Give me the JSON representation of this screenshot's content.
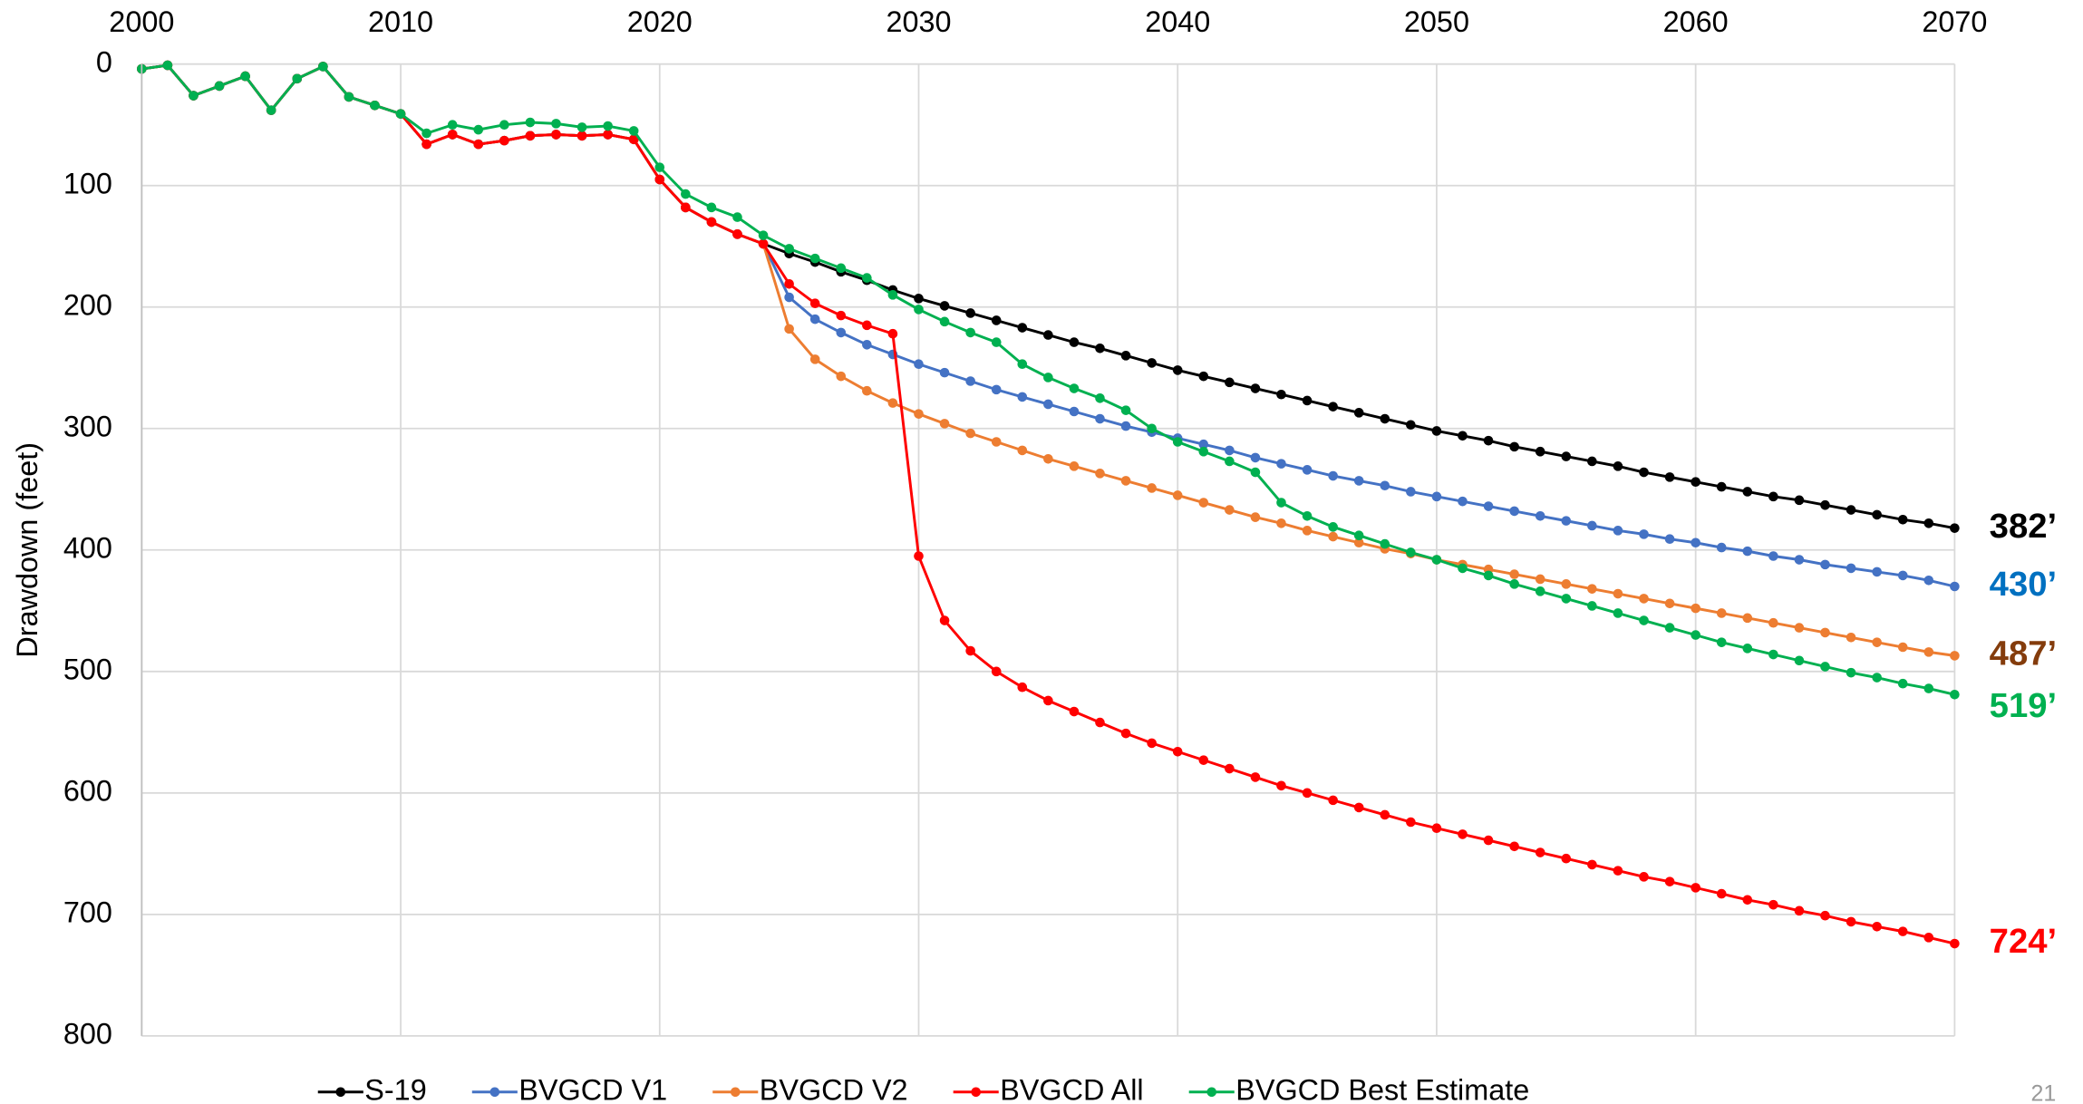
{
  "chart_data": {
    "type": "line",
    "y_label": "Drawdown  (feet)",
    "page_number": "21",
    "x": [
      2000,
      2001,
      2002,
      2003,
      2004,
      2005,
      2006,
      2007,
      2008,
      2009,
      2010,
      2011,
      2012,
      2013,
      2014,
      2015,
      2016,
      2017,
      2018,
      2019,
      2020,
      2021,
      2022,
      2023,
      2024,
      2025,
      2026,
      2027,
      2028,
      2029,
      2030,
      2031,
      2032,
      2033,
      2034,
      2035,
      2036,
      2037,
      2038,
      2039,
      2040,
      2041,
      2042,
      2043,
      2044,
      2045,
      2046,
      2047,
      2048,
      2049,
      2050,
      2051,
      2052,
      2053,
      2054,
      2055,
      2056,
      2057,
      2058,
      2059,
      2060,
      2061,
      2062,
      2063,
      2064,
      2065,
      2066,
      2067,
      2068,
      2069,
      2070
    ],
    "xlim": [
      2000,
      2070
    ],
    "xticks": [
      2000,
      2010,
      2020,
      2030,
      2040,
      2050,
      2060,
      2070
    ],
    "ylim": [
      0,
      800
    ],
    "yticks": [
      0,
      100,
      200,
      300,
      400,
      500,
      600,
      700,
      800
    ],
    "y_inverted": true,
    "grid": true,
    "series": [
      {
        "name": "S-19",
        "color": "#000000",
        "end_label": "382’",
        "label_color": "#000000",
        "values": [
          4,
          1,
          26,
          18,
          10,
          38,
          12,
          2,
          27,
          34,
          41,
          66,
          58,
          66,
          63,
          59,
          58,
          59,
          58,
          62,
          95,
          118,
          130,
          140,
          148,
          156,
          163,
          171,
          178,
          186,
          193,
          199,
          205,
          211,
          217,
          223,
          229,
          234,
          240,
          246,
          252,
          257,
          262,
          267,
          272,
          277,
          282,
          287,
          292,
          297,
          302,
          306,
          310,
          315,
          319,
          323,
          327,
          331,
          336,
          340,
          344,
          348,
          352,
          356,
          359,
          363,
          367,
          371,
          375,
          378,
          382
        ]
      },
      {
        "name": "BVGCD V1",
        "color": "#4472c4",
        "end_label": "430’",
        "label_color": "#0070c0",
        "values": [
          4,
          1,
          26,
          18,
          10,
          38,
          12,
          2,
          27,
          34,
          41,
          66,
          58,
          66,
          63,
          59,
          58,
          59,
          58,
          62,
          95,
          118,
          130,
          140,
          148,
          192,
          210,
          221,
          231,
          239,
          247,
          254,
          261,
          268,
          274,
          280,
          286,
          292,
          298,
          303,
          308,
          313,
          318,
          324,
          329,
          334,
          339,
          343,
          347,
          352,
          356,
          360,
          364,
          368,
          372,
          376,
          380,
          384,
          387,
          391,
          394,
          398,
          401,
          405,
          408,
          412,
          415,
          418,
          421,
          425,
          430
        ]
      },
      {
        "name": "BVGCD V2",
        "color": "#ed7d31",
        "end_label": "487’",
        "label_color": "#843c0c",
        "values": [
          4,
          1,
          26,
          18,
          10,
          38,
          12,
          2,
          27,
          34,
          41,
          66,
          58,
          66,
          63,
          59,
          58,
          59,
          58,
          62,
          95,
          118,
          130,
          140,
          148,
          218,
          243,
          257,
          269,
          279,
          288,
          296,
          304,
          311,
          318,
          325,
          331,
          337,
          343,
          349,
          355,
          361,
          367,
          373,
          378,
          384,
          389,
          394,
          399,
          403,
          408,
          412,
          416,
          420,
          424,
          428,
          432,
          436,
          440,
          444,
          448,
          452,
          456,
          460,
          464,
          468,
          472,
          476,
          480,
          484,
          487
        ]
      },
      {
        "name": "BVGCD All",
        "color": "#ff0000",
        "end_label": "724’",
        "label_color": "#ff0000",
        "values": [
          4,
          1,
          26,
          18,
          10,
          38,
          12,
          2,
          27,
          34,
          41,
          66,
          58,
          66,
          63,
          59,
          58,
          59,
          58,
          62,
          95,
          118,
          130,
          140,
          148,
          181,
          197,
          207,
          215,
          222,
          405,
          458,
          483,
          500,
          513,
          524,
          533,
          542,
          551,
          559,
          566,
          573,
          580,
          587,
          594,
          600,
          606,
          612,
          618,
          624,
          629,
          634,
          639,
          644,
          649,
          654,
          659,
          664,
          669,
          673,
          678,
          683,
          688,
          692,
          697,
          701,
          706,
          710,
          714,
          719,
          724
        ]
      },
      {
        "name": "BVGCD Best Estimate",
        "color": "#00b050",
        "end_label": "519’",
        "label_color": "#00b050",
        "values": [
          4,
          1,
          26,
          18,
          10,
          38,
          12,
          2,
          27,
          34,
          41,
          57,
          50,
          54,
          50,
          48,
          49,
          52,
          51,
          55,
          85,
          107,
          118,
          126,
          141,
          152,
          160,
          168,
          176,
          190,
          202,
          212,
          221,
          229,
          247,
          258,
          267,
          275,
          285,
          300,
          311,
          319,
          327,
          336,
          361,
          372,
          381,
          388,
          395,
          402,
          408,
          415,
          421,
          428,
          434,
          440,
          446,
          452,
          458,
          464,
          470,
          476,
          481,
          486,
          491,
          496,
          501,
          505,
          510,
          514,
          519
        ]
      }
    ]
  }
}
